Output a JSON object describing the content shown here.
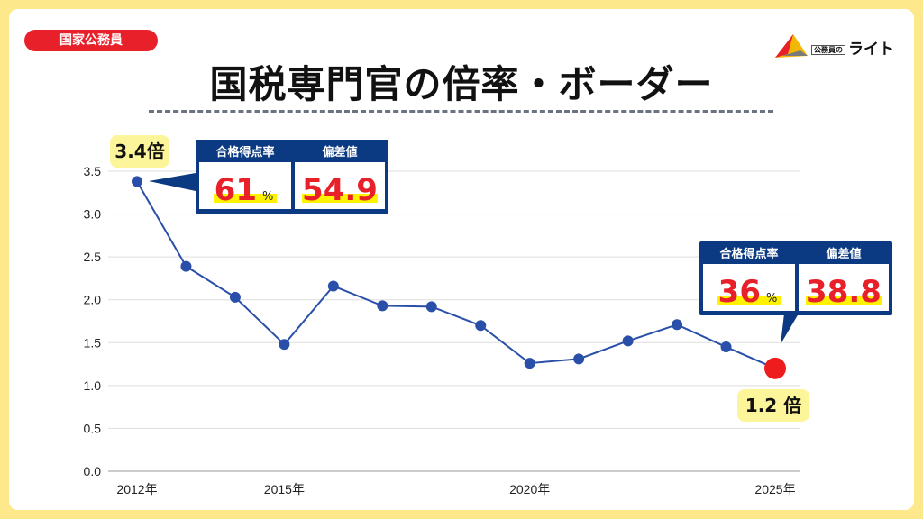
{
  "header": {
    "badge": "国家公務員",
    "title": "国税専門官の倍率・ボーダー"
  },
  "logo": {
    "small_text": "公務員の",
    "brand": "ライト"
  },
  "colors": {
    "line": "#2a4fa8",
    "highlight_point": "#ee1c1c",
    "callout": "#0b3a82",
    "value_text": "#e8202a",
    "marker": "#fff200",
    "label_bg": "#fdf59a"
  },
  "callouts": [
    {
      "year_label": "3.4倍",
      "rate_label": "合格得点率",
      "rate_value": "61",
      "rate_unit": "%",
      "dev_label": "偏差値",
      "dev_value": "54.9"
    },
    {
      "year_label": "1.2 倍",
      "rate_label": "合格得点率",
      "rate_value": "36",
      "rate_unit": "%",
      "dev_label": "偏差値",
      "dev_value": "38.8"
    }
  ],
  "chart_data": {
    "type": "line",
    "x": [
      2012,
      2013,
      2014,
      2015,
      2016,
      2017,
      2018,
      2019,
      2020,
      2021,
      2022,
      2023,
      2024,
      2025
    ],
    "values": [
      3.38,
      2.39,
      2.03,
      1.48,
      2.16,
      1.93,
      1.92,
      1.7,
      1.26,
      1.31,
      1.52,
      1.71,
      1.45,
      1.2
    ],
    "ylim": [
      0,
      3.5
    ],
    "yticks": [
      "0.0",
      "0.5",
      "1.0",
      "1.5",
      "2.0",
      "2.5",
      "3.0",
      "3.5"
    ],
    "xticks": [
      {
        "year": 2012,
        "label": "2012年"
      },
      {
        "year": 2015,
        "label": "2015年"
      },
      {
        "year": 2020,
        "label": "2020年"
      },
      {
        "year": 2025,
        "label": "2025年"
      }
    ],
    "grid": true
  }
}
